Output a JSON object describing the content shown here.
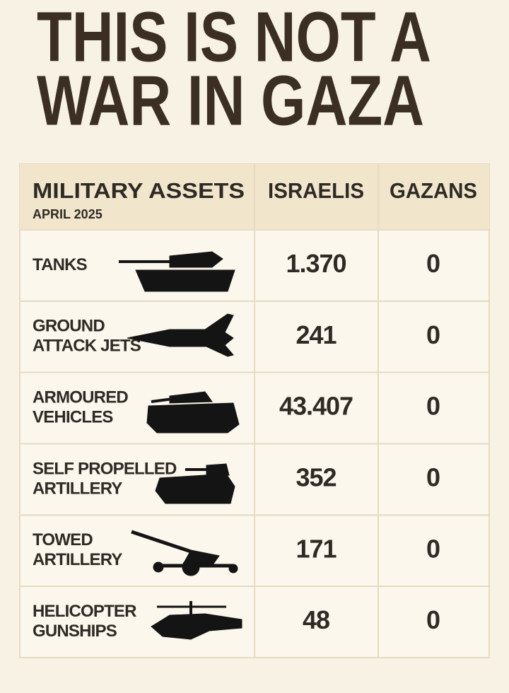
{
  "title_lines": [
    "THIS IS NOT A",
    "WAR IN GAZA"
  ],
  "table": {
    "header": {
      "asset": "MILITARY ASSETS",
      "date": "APRIL 2025",
      "israelis": "ISRAELIS",
      "gazans": "GAZANS"
    },
    "rows": [
      {
        "label": [
          "TANKS"
        ],
        "israelis": "1.370",
        "gazans": "0"
      },
      {
        "label": [
          "GROUND",
          "ATTACK JETS"
        ],
        "israelis": "241",
        "gazans": "0"
      },
      {
        "label": [
          "ARMOURED",
          "VEHICLES"
        ],
        "israelis": "43.407",
        "gazans": "0"
      },
      {
        "label": [
          "SELF PROPELLED",
          "ARTILLERY"
        ],
        "israelis": "352",
        "gazans": "0"
      },
      {
        "label": [
          "TOWED",
          "ARTILLERY"
        ],
        "israelis": "171",
        "gazans": "0"
      },
      {
        "label": [
          "HELICOPTER",
          "GUNSHIPS"
        ],
        "israelis": "48",
        "gazans": "0"
      }
    ]
  }
}
